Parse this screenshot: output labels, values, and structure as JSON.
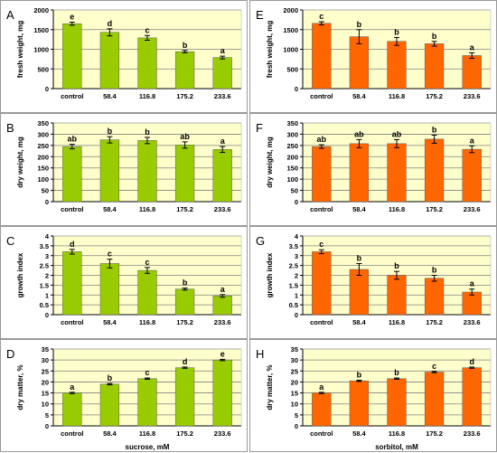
{
  "colors": {
    "sucrose_bar": "#99cc00",
    "sorbitol_bar": "#ff6600",
    "plot_background": "#ffffcc",
    "grid": "#808080",
    "axis": "#000000"
  },
  "chart_data": [
    {
      "panel": "A",
      "type": "bar",
      "categories": [
        "control",
        "58.4",
        "116.8",
        "175.2",
        "233.6"
      ],
      "values": [
        1650,
        1430,
        1290,
        940,
        790
      ],
      "errors": [
        40,
        90,
        60,
        30,
        35
      ],
      "letters": [
        "e",
        "d",
        "c",
        "b",
        "a"
      ],
      "ylabel": "fresh weight, mg",
      "xlabel": "",
      "ylim": [
        0,
        2000
      ],
      "yticks": [
        0,
        500,
        1000,
        1500,
        2000
      ],
      "grid": true,
      "color": "#99cc00"
    },
    {
      "panel": "E",
      "type": "bar",
      "categories": [
        "control",
        "58.4",
        "116.8",
        "175.2",
        "233.6"
      ],
      "values": [
        1660,
        1320,
        1200,
        1140,
        840
      ],
      "errors": [
        40,
        180,
        100,
        60,
        70
      ],
      "letters": [
        "c",
        "b",
        "b",
        "b",
        "a"
      ],
      "ylabel": "fresh weight, mg",
      "xlabel": "",
      "ylim": [
        0,
        2000
      ],
      "yticks": [
        0,
        500,
        1000,
        1500,
        2000
      ],
      "grid": true,
      "color": "#ff6600"
    },
    {
      "panel": "B",
      "type": "bar",
      "categories": [
        "control",
        "58.4",
        "116.8",
        "175.2",
        "233.6"
      ],
      "values": [
        245,
        275,
        272,
        252,
        232
      ],
      "errors": [
        10,
        14,
        14,
        14,
        13
      ],
      "letters": [
        "ab",
        "b",
        "b",
        "ab",
        "a"
      ],
      "ylabel": "dry weight, mg",
      "xlabel": "",
      "ylim": [
        0,
        350
      ],
      "yticks": [
        0,
        50,
        100,
        150,
        200,
        250,
        300,
        350
      ],
      "grid": true,
      "color": "#99cc00"
    },
    {
      "panel": "F",
      "type": "bar",
      "categories": [
        "control",
        "58.4",
        "116.8",
        "175.2",
        "233.6"
      ],
      "values": [
        245,
        258,
        258,
        278,
        233
      ],
      "errors": [
        8,
        18,
        18,
        18,
        15
      ],
      "letters": [
        "ab",
        "ab",
        "ab",
        "b",
        "a"
      ],
      "ylabel": "dry weight, mg",
      "xlabel": "",
      "ylim": [
        0,
        350
      ],
      "yticks": [
        0,
        50,
        100,
        150,
        200,
        250,
        300,
        350
      ],
      "grid": true,
      "color": "#ff6600"
    },
    {
      "panel": "C",
      "type": "bar",
      "categories": [
        "control",
        "58.4",
        "116.8",
        "175.2",
        "233.6"
      ],
      "values": [
        3.2,
        2.6,
        2.25,
        1.3,
        0.95
      ],
      "errors": [
        0.12,
        0.22,
        0.15,
        0.05,
        0.07
      ],
      "letters": [
        "d",
        "c",
        "c",
        "b",
        "a"
      ],
      "ylabel": "growth index",
      "xlabel": "",
      "ylim": [
        0,
        4
      ],
      "yticks": [
        0,
        0.5,
        1,
        1.5,
        2,
        2.5,
        3,
        3.5,
        4
      ],
      "ytick_labels": [
        "0",
        "0.5",
        "1",
        "1.5",
        "2",
        "2.5",
        "3",
        "3.5",
        "4"
      ],
      "grid": true,
      "color": "#99cc00"
    },
    {
      "panel": "G",
      "type": "bar",
      "categories": [
        "control",
        "58.4",
        "116.8",
        "175.2",
        "233.6"
      ],
      "values": [
        3.2,
        2.3,
        2.0,
        1.85,
        1.15
      ],
      "errors": [
        0.1,
        0.3,
        0.2,
        0.15,
        0.15
      ],
      "letters": [
        "c",
        "b",
        "b",
        "b",
        "a"
      ],
      "ylabel": "growth index",
      "xlabel": "",
      "ylim": [
        0,
        4
      ],
      "yticks": [
        0,
        0.5,
        1,
        1.5,
        2,
        2.5,
        3,
        3.5,
        4
      ],
      "ytick_labels": [
        "0",
        "0.5",
        "1",
        "1.5",
        "2",
        "2.5",
        "3",
        "3.5",
        "4"
      ],
      "grid": true,
      "color": "#ff6600"
    },
    {
      "panel": "D",
      "type": "bar",
      "categories": [
        "control",
        "58.4",
        "116.8",
        "175.2",
        "233.6"
      ],
      "values": [
        15,
        19,
        21.5,
        26.5,
        30
      ],
      "errors": [
        0.3,
        0.3,
        0.3,
        0.3,
        0.3
      ],
      "letters": [
        "a",
        "b",
        "c",
        "d",
        "e"
      ],
      "ylabel": "dry matter, %",
      "xlabel": "sucrose, mM",
      "ylim": [
        0,
        35
      ],
      "yticks": [
        0,
        5,
        10,
        15,
        20,
        25,
        30,
        35
      ],
      "grid": true,
      "color": "#99cc00"
    },
    {
      "panel": "H",
      "type": "bar",
      "categories": [
        "control",
        "58.4",
        "116.8",
        "175.2",
        "233.6"
      ],
      "values": [
        15,
        20.5,
        21.5,
        24.5,
        26.5
      ],
      "errors": [
        0.3,
        0.3,
        0.3,
        0.3,
        0.3
      ],
      "letters": [
        "a",
        "b",
        "b",
        "c",
        "d"
      ],
      "ylabel": "dry matter, %",
      "xlabel": "sorbitol, mM",
      "ylim": [
        0,
        35
      ],
      "yticks": [
        0,
        5,
        10,
        15,
        20,
        25,
        30,
        35
      ],
      "grid": true,
      "color": "#ff6600"
    }
  ]
}
